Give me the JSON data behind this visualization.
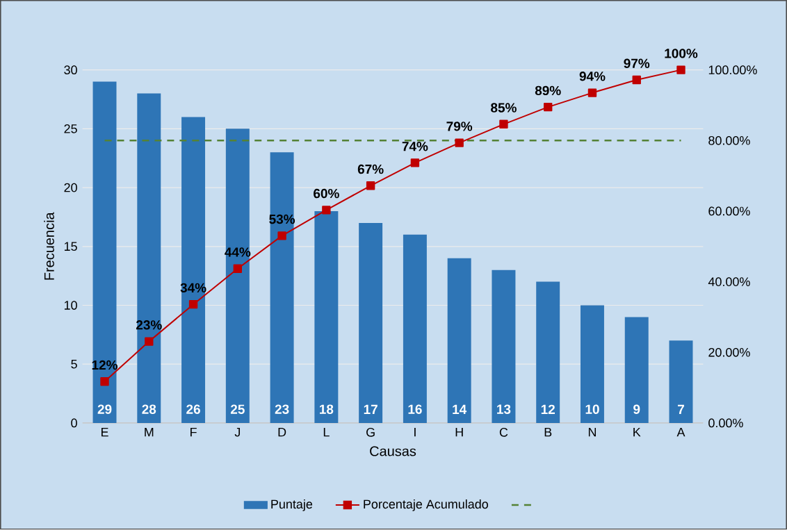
{
  "chart_data": {
    "type": "bar",
    "xlabel": "Causas",
    "ylabel": "Frecuencia",
    "categories": [
      "E",
      "M",
      "F",
      "J",
      "D",
      "L",
      "G",
      "I",
      "H",
      "C",
      "B",
      "N",
      "K",
      "A"
    ],
    "series": [
      {
        "name": "Puntaje",
        "color": "#2e75b6",
        "values": [
          29,
          28,
          26,
          25,
          23,
          18,
          17,
          16,
          14,
          13,
          12,
          10,
          9,
          7
        ],
        "value_labels": [
          "29",
          "28",
          "26",
          "25",
          "23",
          "18",
          "17",
          "16",
          "14",
          "13",
          "12",
          "10",
          "9",
          "7"
        ]
      },
      {
        "name": "Porcentaje Acumulado",
        "type": "line",
        "axis": "y2",
        "color": "#c00000",
        "marker": "square",
        "values": [
          11.74,
          23.08,
          33.6,
          43.72,
          53.04,
          60.32,
          67.21,
          73.68,
          79.35,
          84.62,
          89.47,
          93.52,
          97.17,
          100
        ],
        "value_labels": [
          "12%",
          "23%",
          "34%",
          "44%",
          "53%",
          "60%",
          "67%",
          "74%",
          "79%",
          "85%",
          "89%",
          "94%",
          "97%",
          "100%"
        ]
      }
    ],
    "ylim": [
      0,
      30
    ],
    "yticks": [
      0,
      5,
      10,
      15,
      20,
      25,
      30
    ],
    "y2lim": [
      0,
      100
    ],
    "y2ticks": [
      {
        "value": 0,
        "label": "0.00%"
      },
      {
        "value": 20,
        "label": "20.00%"
      },
      {
        "value": 40,
        "label": "40.00%"
      },
      {
        "value": 60,
        "label": "60.00%"
      },
      {
        "value": 80,
        "label": "80.00%"
      },
      {
        "value": 100,
        "label": "100.00%"
      }
    ],
    "ref_lines": [
      {
        "axis": "y2",
        "value": 80,
        "color": "#548235",
        "line_style": "dashed"
      }
    ],
    "grid": "y",
    "legend": "bottom"
  }
}
